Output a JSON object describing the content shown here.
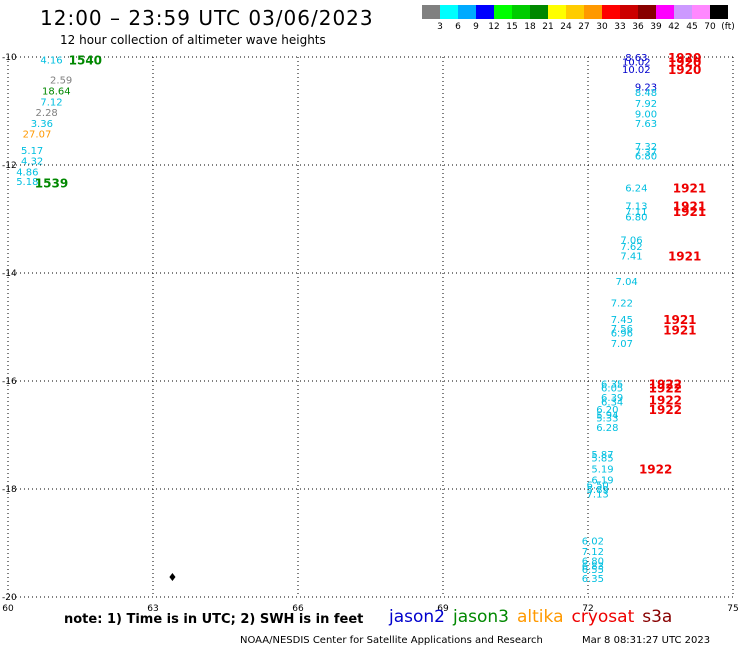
{
  "header": {
    "title": "12:00 – 23:59 UTC 03/06/2023",
    "subtitle": "12 hour collection of altimeter wave heights"
  },
  "colorbar": {
    "colors": [
      "#808080",
      "#00ffff",
      "#00aaff",
      "#0000ff",
      "#00ff00",
      "#00cc00",
      "#008800",
      "#ffff00",
      "#ffcc00",
      "#ff9900",
      "#ff0000",
      "#cc0000",
      "#880000",
      "#ff00ff",
      "#cc99ff",
      "#ff88ff",
      "#000000"
    ],
    "labels": [
      "3",
      "6",
      "9",
      "12",
      "15",
      "18",
      "21",
      "24",
      "27",
      "30",
      "33",
      "36",
      "39",
      "42",
      "45",
      "70",
      "(ft)"
    ]
  },
  "chart_data": {
    "type": "scatter",
    "xlim": [
      60,
      75
    ],
    "ylim": [
      -20,
      -10
    ],
    "xticks": [
      "60",
      "63",
      "66",
      "69",
      "72",
      "75"
    ],
    "yticks": [
      "-10",
      "-12",
      "-14",
      "-16",
      "-18",
      "-20"
    ],
    "grid": true,
    "colors": {
      "light_blue": "#00bfe0",
      "blue": "#0000cc",
      "green": "#008800",
      "gray": "#808080",
      "orange": "#ff9900",
      "red": "#ee0000"
    },
    "points": [
      {
        "x": 60.9,
        "y": -10.05,
        "label": "4.16",
        "color": "#00bfe0"
      },
      {
        "x": 61.1,
        "y": -10.42,
        "label": "2.59",
        "color": "#808080"
      },
      {
        "x": 61.0,
        "y": -10.62,
        "label": "18.64",
        "color": "#008800"
      },
      {
        "x": 60.9,
        "y": -10.82,
        "label": "7.12",
        "color": "#00bfe0"
      },
      {
        "x": 60.8,
        "y": -11.02,
        "label": "2.28",
        "color": "#808080"
      },
      {
        "x": 60.7,
        "y": -11.22,
        "label": "3.36",
        "color": "#00bfe0"
      },
      {
        "x": 60.6,
        "y": -11.42,
        "label": "27.07",
        "color": "#ff9900"
      },
      {
        "x": 60.5,
        "y": -11.72,
        "label": "5.17",
        "color": "#00bfe0"
      },
      {
        "x": 60.5,
        "y": -11.92,
        "label": "4.32",
        "color": "#00bfe0"
      },
      {
        "x": 60.4,
        "y": -12.12,
        "label": "4.86",
        "color": "#00bfe0"
      },
      {
        "x": 60.4,
        "y": -12.3,
        "label": "5.18",
        "color": "#00bfe0"
      },
      {
        "x": 73.0,
        "y": -10.0,
        "label": "8.63",
        "color": "#0000cc"
      },
      {
        "x": 73.0,
        "y": -10.08,
        "label": "10.02",
        "color": "#0000cc"
      },
      {
        "x": 73.0,
        "y": -10.22,
        "label": "10.02",
        "color": "#0000cc"
      },
      {
        "x": 73.2,
        "y": -10.55,
        "label": "9.23",
        "color": "#0000cc"
      },
      {
        "x": 73.2,
        "y": -10.65,
        "label": "8.48",
        "color": "#00bfe0"
      },
      {
        "x": 73.2,
        "y": -10.85,
        "label": "7.92",
        "color": "#00bfe0"
      },
      {
        "x": 73.2,
        "y": -11.05,
        "label": "9.00",
        "color": "#00bfe0"
      },
      {
        "x": 73.2,
        "y": -11.22,
        "label": "7.63",
        "color": "#00bfe0"
      },
      {
        "x": 73.2,
        "y": -11.65,
        "label": "7.32",
        "color": "#00bfe0"
      },
      {
        "x": 73.2,
        "y": -11.75,
        "label": "7.37",
        "color": "#00bfe0"
      },
      {
        "x": 73.2,
        "y": -11.82,
        "label": "6.80",
        "color": "#00bfe0"
      },
      {
        "x": 73.0,
        "y": -12.42,
        "label": "6.24",
        "color": "#00bfe0"
      },
      {
        "x": 73.0,
        "y": -12.75,
        "label": "7.13",
        "color": "#00bfe0"
      },
      {
        "x": 73.0,
        "y": -12.85,
        "label": "7.11",
        "color": "#00bfe0"
      },
      {
        "x": 73.0,
        "y": -12.95,
        "label": "6.80",
        "color": "#00bfe0"
      },
      {
        "x": 72.9,
        "y": -13.38,
        "label": "7.06",
        "color": "#00bfe0"
      },
      {
        "x": 72.9,
        "y": -13.5,
        "label": "7.62",
        "color": "#00bfe0"
      },
      {
        "x": 72.9,
        "y": -13.68,
        "label": "7.41",
        "color": "#00bfe0"
      },
      {
        "x": 72.8,
        "y": -14.15,
        "label": "7.04",
        "color": "#00bfe0"
      },
      {
        "x": 72.7,
        "y": -14.55,
        "label": "7.22",
        "color": "#00bfe0"
      },
      {
        "x": 72.7,
        "y": -14.85,
        "label": "7.45",
        "color": "#00bfe0"
      },
      {
        "x": 72.7,
        "y": -15.02,
        "label": "7.56",
        "color": "#00bfe0"
      },
      {
        "x": 72.7,
        "y": -15.1,
        "label": "6.96",
        "color": "#00bfe0"
      },
      {
        "x": 72.7,
        "y": -15.3,
        "label": "7.07",
        "color": "#00bfe0"
      },
      {
        "x": 72.5,
        "y": -16.05,
        "label": "6.35",
        "color": "#00bfe0"
      },
      {
        "x": 72.5,
        "y": -16.12,
        "label": "6.05",
        "color": "#00bfe0"
      },
      {
        "x": 72.5,
        "y": -16.3,
        "label": "6.39",
        "color": "#00bfe0"
      },
      {
        "x": 72.5,
        "y": -16.38,
        "label": "6.34",
        "color": "#00bfe0"
      },
      {
        "x": 72.4,
        "y": -16.52,
        "label": "6.20",
        "color": "#00bfe0"
      },
      {
        "x": 72.4,
        "y": -16.62,
        "label": "5.94",
        "color": "#00bfe0"
      },
      {
        "x": 72.4,
        "y": -16.68,
        "label": "5.33",
        "color": "#00bfe0"
      },
      {
        "x": 72.4,
        "y": -16.85,
        "label": "6.28",
        "color": "#00bfe0"
      },
      {
        "x": 72.3,
        "y": -17.35,
        "label": "5.87",
        "color": "#00bfe0"
      },
      {
        "x": 72.3,
        "y": -17.42,
        "label": "5.85",
        "color": "#00bfe0"
      },
      {
        "x": 72.3,
        "y": -17.62,
        "label": "5.19",
        "color": "#00bfe0"
      },
      {
        "x": 72.3,
        "y": -17.82,
        "label": "6.19",
        "color": "#00bfe0"
      },
      {
        "x": 72.2,
        "y": -17.92,
        "label": "6.50",
        "color": "#00bfe0"
      },
      {
        "x": 72.2,
        "y": -18.0,
        "label": "5.89",
        "color": "#00bfe0"
      },
      {
        "x": 72.2,
        "y": -18.08,
        "label": "7.13",
        "color": "#00bfe0"
      },
      {
        "x": 72.1,
        "y": -18.95,
        "label": "6.02",
        "color": "#00bfe0"
      },
      {
        "x": 72.1,
        "y": -19.15,
        "label": "7.12",
        "color": "#00bfe0"
      },
      {
        "x": 72.1,
        "y": -19.32,
        "label": "6.80",
        "color": "#00bfe0"
      },
      {
        "x": 72.1,
        "y": -19.42,
        "label": "6.83",
        "color": "#00bfe0"
      },
      {
        "x": 72.1,
        "y": -19.48,
        "label": "6.55",
        "color": "#00bfe0"
      },
      {
        "x": 72.1,
        "y": -19.65,
        "label": "6.35",
        "color": "#00bfe0"
      }
    ],
    "time_labels": [
      {
        "x": 61.6,
        "y": -10.05,
        "label": "1540",
        "color": "#008800"
      },
      {
        "x": 60.9,
        "y": -12.32,
        "label": "1539",
        "color": "#008800"
      },
      {
        "x": 74.0,
        "y": -10.0,
        "label": "1920",
        "color": "#ee0000"
      },
      {
        "x": 74.0,
        "y": -10.08,
        "label": "1920",
        "color": "#ee0000"
      },
      {
        "x": 74.0,
        "y": -10.22,
        "label": "1920",
        "color": "#ee0000"
      },
      {
        "x": 74.1,
        "y": -12.42,
        "label": "1921",
        "color": "#ee0000"
      },
      {
        "x": 74.1,
        "y": -12.75,
        "label": "1921",
        "color": "#ee0000"
      },
      {
        "x": 74.1,
        "y": -12.85,
        "label": "1921",
        "color": "#ee0000"
      },
      {
        "x": 74.0,
        "y": -13.68,
        "label": "1921",
        "color": "#ee0000"
      },
      {
        "x": 73.9,
        "y": -14.85,
        "label": "1921",
        "color": "#ee0000"
      },
      {
        "x": 73.9,
        "y": -15.05,
        "label": "1921",
        "color": "#ee0000"
      },
      {
        "x": 73.6,
        "y": -16.05,
        "label": "1922",
        "color": "#ee0000"
      },
      {
        "x": 73.6,
        "y": -16.12,
        "label": "1922",
        "color": "#ee0000"
      },
      {
        "x": 73.6,
        "y": -16.34,
        "label": "1922",
        "color": "#ee0000"
      },
      {
        "x": 73.6,
        "y": -16.52,
        "label": "1922",
        "color": "#ee0000"
      },
      {
        "x": 73.4,
        "y": -17.62,
        "label": "1922",
        "color": "#ee0000"
      }
    ]
  },
  "footer": {
    "note": "note:  1) Time is in UTC;  2) SWH is in feet",
    "legend": [
      {
        "name": "jason2",
        "color": "#0000cc"
      },
      {
        "name": "jason3",
        "color": "#008800"
      },
      {
        "name": "altika",
        "color": "#ff9900"
      },
      {
        "name": "cryosat",
        "color": "#ee0000"
      },
      {
        "name": "s3a",
        "color": "#880000"
      }
    ],
    "credit": "NOAA/NESDIS Center for Satellite Applications and Research",
    "timestamp": "Mar  8 08:31:27 UTC 2023"
  }
}
